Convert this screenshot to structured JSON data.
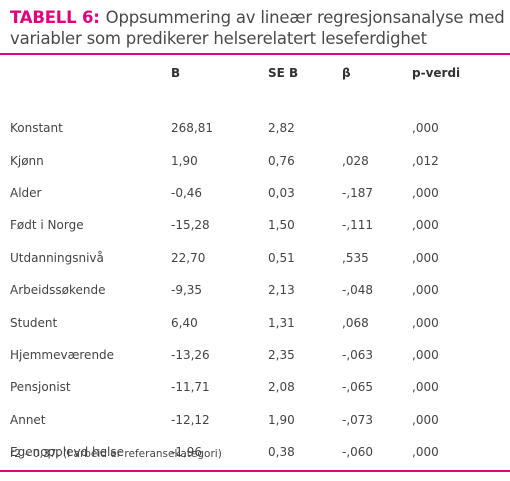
{
  "title": {
    "label": "TABELL 6:",
    "text": "Oppsummering av lineær regresjonsanalyse med variabler som predikerer helserelatert leseferdighet"
  },
  "columns": [
    "",
    "B",
    "SE B",
    "β",
    "p-verdi"
  ],
  "rows": [
    [
      "Konstant",
      "268,81",
      "2,82",
      "",
      ",000"
    ],
    [
      "Kjønn",
      "1,90",
      "0,76",
      ",028",
      ",012"
    ],
    [
      "Alder",
      "-0,46",
      "0,03",
      "-,187",
      ",000"
    ],
    [
      "Født i Norge",
      "-15,28",
      "1,50",
      "-,111",
      ",000"
    ],
    [
      "Utdanningsnivå",
      "22,70",
      "0,51",
      ",535",
      ",000"
    ],
    [
      "Arbeidssøkende",
      "-9,35",
      "2,13",
      "-,048",
      ",000"
    ],
    [
      "Student",
      "6,40",
      "1,31",
      ",068",
      ",000"
    ],
    [
      "Hjemmeværende",
      "-13,26",
      "2,35",
      "-,063",
      ",000"
    ],
    [
      "Pensjonist",
      "-11,71",
      "2,08",
      "-,065",
      ",000"
    ],
    [
      "Annet",
      "-12,12",
      "1,90",
      "-,073",
      ",000"
    ],
    [
      "Egenopplevd helse",
      "-1,96",
      "0,38",
      "-,060",
      ",000"
    ]
  ],
  "footnote": "r2 – 0,37. (I arbeid er referansekategori)",
  "colors": {
    "accent": "#e6007e",
    "text": "#444444"
  }
}
